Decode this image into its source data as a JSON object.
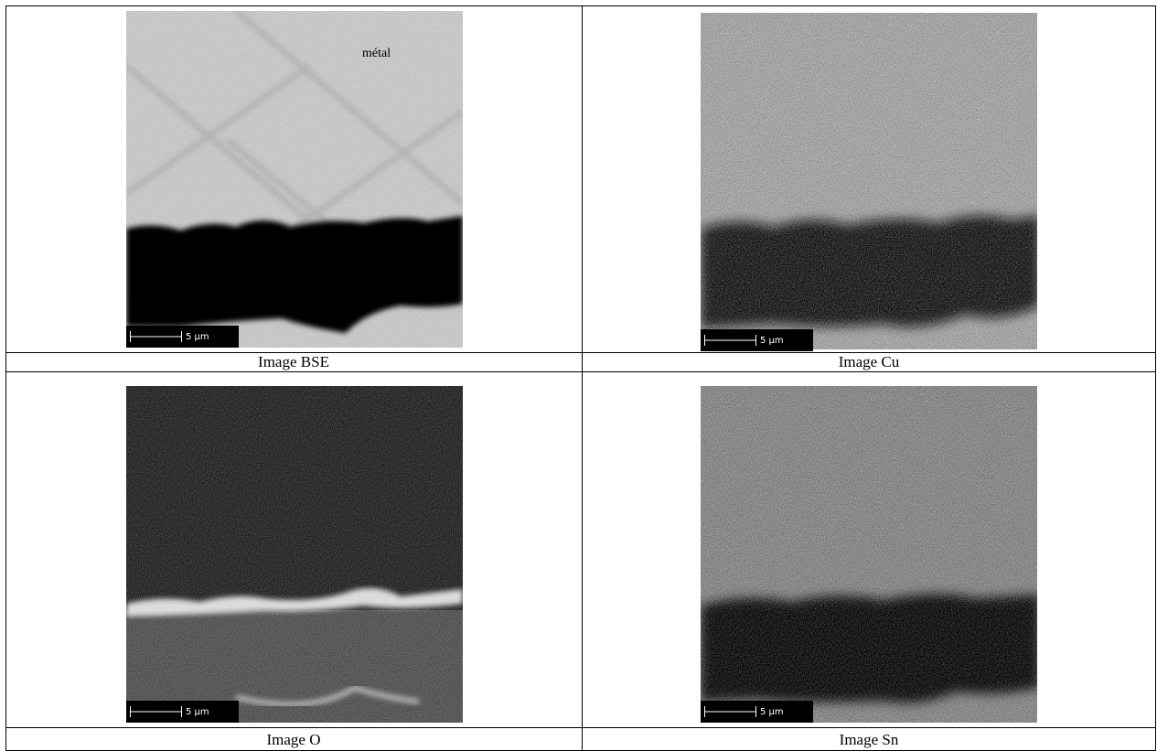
{
  "panels": [
    {
      "caption": "Image BSE",
      "scale_bar": "5 µm",
      "annotation": "métal"
    },
    {
      "caption": "Image Cu",
      "scale_bar": "5 µm"
    },
    {
      "caption": "Image O",
      "scale_bar": "5 µm"
    },
    {
      "caption": "Image Sn",
      "scale_bar": "5 µm"
    }
  ]
}
